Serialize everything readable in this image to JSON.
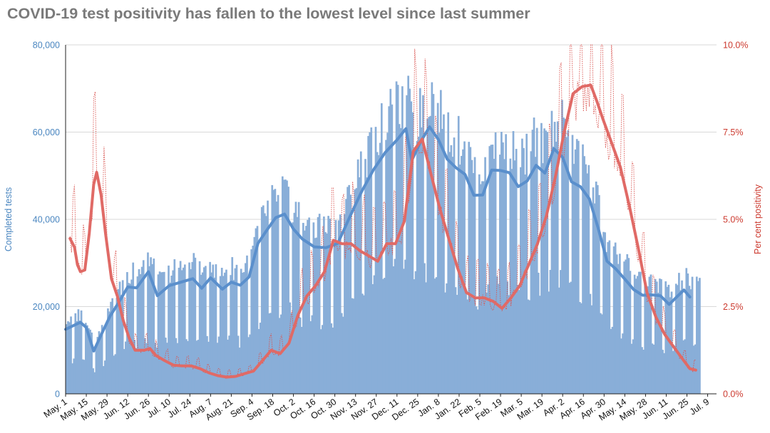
{
  "chart_data": {
    "type": "bar+line",
    "title": "COVID-19 test positivity has fallen to the lowest level since last summer",
    "ylabel_left": "Completed tests",
    "ylabel_right": "Per cent positivity",
    "ylim_left": [
      0,
      80000
    ],
    "ylim_right": [
      0,
      10
    ],
    "yticks_left": [
      "0",
      "20,000",
      "40,000",
      "60,000",
      "80,000"
    ],
    "yticks_right": [
      "0.0%",
      "2.5%",
      "5.0%",
      "7.5%",
      "10.0%"
    ],
    "x_tick_labels": [
      "May. 1",
      "May. 15",
      "May. 29",
      "Jun. 12",
      "Jun. 26",
      "Jul. 10",
      "Jul. 24",
      "Aug. 7",
      "Aug. 21",
      "Sep. 4",
      "Sep. 18",
      "Oct. 2",
      "Oct. 16",
      "Oct. 30",
      "Nov. 13",
      "Nov. 27",
      "Dec. 11",
      "Dec. 25",
      "Jan. 8",
      "Jan. 22",
      "Feb. 5",
      "Feb. 19",
      "Mar. 5",
      "Mar. 19",
      "Apr. 2",
      "Apr. 16",
      "Apr. 30",
      "May. 14",
      "May. 28",
      "Jun. 11",
      "Jun. 25",
      "Jul. 9"
    ],
    "days_total": 440,
    "grid": true,
    "colors": {
      "bars": "#89aed8",
      "tests_avg": "#5a8fcc",
      "positivity": "#e06a66",
      "positivity_daily": "#d9534f",
      "left_axis": "#4a86c0",
      "right_axis": "#cc3a2f",
      "title": "#7a7a7a",
      "grid": "#d9d9d9"
    },
    "tests_7day_avg": [
      [
        0,
        14800
      ],
      [
        5,
        15600
      ],
      [
        10,
        16400
      ],
      [
        14,
        15200
      ],
      [
        19,
        9800
      ],
      [
        24,
        13500
      ],
      [
        30,
        17800
      ],
      [
        36,
        21000
      ],
      [
        42,
        24500
      ],
      [
        48,
        24300
      ],
      [
        56,
        28000
      ],
      [
        62,
        22500
      ],
      [
        70,
        24800
      ],
      [
        78,
        25600
      ],
      [
        86,
        26400
      ],
      [
        92,
        24200
      ],
      [
        98,
        26600
      ],
      [
        106,
        24000
      ],
      [
        112,
        25600
      ],
      [
        118,
        24900
      ],
      [
        124,
        26800
      ],
      [
        130,
        34500
      ],
      [
        136,
        37500
      ],
      [
        142,
        40400
      ],
      [
        148,
        41200
      ],
      [
        154,
        37800
      ],
      [
        160,
        35500
      ],
      [
        168,
        33700
      ],
      [
        176,
        33500
      ],
      [
        184,
        34500
      ],
      [
        192,
        40500
      ],
      [
        200,
        46300
      ],
      [
        208,
        51300
      ],
      [
        216,
        55300
      ],
      [
        224,
        58200
      ],
      [
        230,
        60800
      ],
      [
        234,
        53500
      ],
      [
        240,
        57800
      ],
      [
        246,
        61200
      ],
      [
        252,
        58300
      ],
      [
        258,
        53800
      ],
      [
        264,
        51800
      ],
      [
        270,
        50300
      ],
      [
        276,
        45500
      ],
      [
        282,
        45600
      ],
      [
        288,
        51300
      ],
      [
        294,
        51200
      ],
      [
        300,
        50700
      ],
      [
        306,
        47500
      ],
      [
        312,
        48800
      ],
      [
        318,
        52400
      ],
      [
        324,
        50600
      ],
      [
        330,
        56200
      ],
      [
        336,
        54200
      ],
      [
        342,
        48600
      ],
      [
        348,
        47500
      ],
      [
        354,
        44700
      ],
      [
        360,
        38000
      ],
      [
        366,
        30400
      ],
      [
        372,
        28600
      ],
      [
        378,
        26300
      ],
      [
        384,
        23900
      ],
      [
        390,
        22600
      ],
      [
        396,
        22700
      ],
      [
        402,
        22500
      ],
      [
        408,
        20500
      ],
      [
        414,
        22500
      ],
      [
        418,
        23800
      ],
      [
        422,
        22200
      ]
    ],
    "positivity_7day_avg": [
      [
        3,
        4.45
      ],
      [
        6,
        4.2
      ],
      [
        8,
        3.7
      ],
      [
        10,
        3.5
      ],
      [
        13,
        3.55
      ],
      [
        16,
        4.6
      ],
      [
        19,
        6.0
      ],
      [
        21,
        6.35
      ],
      [
        24,
        5.7
      ],
      [
        27,
        4.6
      ],
      [
        31,
        3.3
      ],
      [
        35,
        2.8
      ],
      [
        39,
        2.1
      ],
      [
        43,
        1.6
      ],
      [
        47,
        1.25
      ],
      [
        53,
        1.25
      ],
      [
        57,
        1.3
      ],
      [
        61,
        1.1
      ],
      [
        67,
        0.95
      ],
      [
        73,
        0.82
      ],
      [
        79,
        0.8
      ],
      [
        85,
        0.8
      ],
      [
        91,
        0.72
      ],
      [
        97,
        0.6
      ],
      [
        103,
        0.52
      ],
      [
        109,
        0.48
      ],
      [
        115,
        0.5
      ],
      [
        121,
        0.58
      ],
      [
        127,
        0.65
      ],
      [
        133,
        0.95
      ],
      [
        139,
        1.25
      ],
      [
        145,
        1.15
      ],
      [
        151,
        1.45
      ],
      [
        157,
        2.25
      ],
      [
        163,
        2.8
      ],
      [
        169,
        3.1
      ],
      [
        175,
        3.5
      ],
      [
        181,
        4.4
      ],
      [
        187,
        4.3
      ],
      [
        193,
        4.3
      ],
      [
        199,
        4.1
      ],
      [
        205,
        3.95
      ],
      [
        211,
        3.8
      ],
      [
        217,
        4.3
      ],
      [
        223,
        4.3
      ],
      [
        229,
        4.95
      ],
      [
        235,
        6.95
      ],
      [
        241,
        7.3
      ],
      [
        247,
        6.3
      ],
      [
        253,
        5.3
      ],
      [
        259,
        4.45
      ],
      [
        265,
        3.6
      ],
      [
        271,
        2.9
      ],
      [
        277,
        2.75
      ],
      [
        283,
        2.75
      ],
      [
        289,
        2.65
      ],
      [
        295,
        2.45
      ],
      [
        301,
        2.75
      ],
      [
        307,
        3.1
      ],
      [
        313,
        3.7
      ],
      [
        319,
        4.3
      ],
      [
        325,
        5.1
      ],
      [
        331,
        6.2
      ],
      [
        337,
        7.5
      ],
      [
        343,
        8.6
      ],
      [
        349,
        8.8
      ],
      [
        355,
        8.85
      ],
      [
        359,
        8.4
      ],
      [
        363,
        7.9
      ],
      [
        369,
        7.2
      ],
      [
        375,
        6.5
      ],
      [
        381,
        5.4
      ],
      [
        387,
        4.2
      ],
      [
        393,
        2.9
      ],
      [
        399,
        2.2
      ],
      [
        405,
        1.7
      ],
      [
        411,
        1.35
      ],
      [
        417,
        1.0
      ],
      [
        422,
        0.72
      ],
      [
        426,
        0.68
      ]
    ]
  }
}
